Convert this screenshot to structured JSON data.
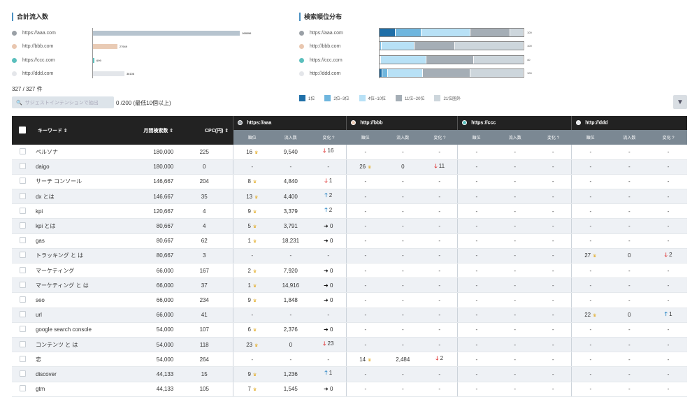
{
  "left_chart": {
    "title": "合計流入数",
    "sites": [
      {
        "label": "https://aaa.com",
        "value": "168596",
        "color": "#9aa0a6",
        "bar_fraction": 1.0,
        "bar_color": "#b7c4cf"
      },
      {
        "label": "http://bbb.com",
        "value": "27949",
        "color": "#e9c7b0",
        "bar_fraction": 0.166,
        "bar_color": "#e9cbb5"
      },
      {
        "label": "https://ccc.com",
        "value": "699",
        "color": "#5bbfbd",
        "bar_fraction": 0.004,
        "bar_color": "#5bbfbd"
      },
      {
        "label": "http://ddd.com",
        "value": "36106",
        "color": "#e4e6ea",
        "bar_fraction": 0.214,
        "bar_color": "#e3e6ea"
      }
    ]
  },
  "right_chart": {
    "title": "検索順位分布",
    "sites": [
      {
        "label": "https://aaa.com",
        "value": "100",
        "color": "#9aa0a6",
        "segments": [
          0.11,
          0.18,
          0.34,
          0.28,
          0.09
        ]
      },
      {
        "label": "http://bbb.com",
        "value": "100",
        "color": "#e9c7b0",
        "segments": [
          0.0,
          0.01,
          0.23,
          0.28,
          0.48
        ]
      },
      {
        "label": "https://ccc.com",
        "value": "40",
        "color": "#5bbfbd",
        "segments": [
          0.0,
          0.0,
          0.32,
          0.33,
          0.35
        ]
      },
      {
        "label": "http://ddd.com",
        "value": "100",
        "color": "#e4e6ea",
        "segments": [
          0.02,
          0.04,
          0.24,
          0.33,
          0.37
        ]
      }
    ],
    "legend": [
      {
        "label": "1位",
        "color": "#1f6fa8"
      },
      {
        "label": "2位~3位",
        "color": "#6fb6de"
      },
      {
        "label": "4位~10位",
        "color": "#b8e1f6"
      },
      {
        "label": "11位~20位",
        "color": "#a5aeb6"
      },
      {
        "label": "21位圏外",
        "color": "#cdd6dc"
      }
    ]
  },
  "count_text": "327 / 327 件",
  "search": {
    "placeholder": "サジェストインテンションで抽出",
    "count": "0 /200 (最低10個以上)"
  },
  "table": {
    "headers": {
      "keyword": "キーワード",
      "volume": "月間検索数",
      "cpc": "CPC(円)"
    },
    "sites": [
      "https://aaa",
      "http://bbb",
      "https://ccc",
      "http://ddd"
    ],
    "site_colors": [
      "#9aa0a6",
      "#e9c7b0",
      "#5bbfbd",
      "#e4e6ea"
    ],
    "sub_headers": [
      "順位",
      "流入数",
      "変化"
    ],
    "rows": [
      {
        "kw": "ペルソナ",
        "vol": "180,000",
        "cpc": "225",
        "s": [
          [
            "16",
            "9,540",
            "d",
            "16"
          ],
          null,
          null,
          null
        ]
      },
      {
        "kw": "daigo",
        "vol": "180,000",
        "cpc": "0",
        "s": [
          [
            "-",
            "-",
            "",
            ""
          ],
          [
            "26",
            "0",
            "d",
            "11"
          ],
          null,
          null
        ]
      },
      {
        "kw": "サーチ コンソール",
        "vol": "146,667",
        "cpc": "204",
        "s": [
          [
            "8",
            "4,840",
            "d",
            "1"
          ],
          null,
          null,
          null
        ]
      },
      {
        "kw": "dx とは",
        "vol": "146,667",
        "cpc": "35",
        "s": [
          [
            "13",
            "4,400",
            "u",
            "2"
          ],
          null,
          null,
          null
        ]
      },
      {
        "kw": "kpi",
        "vol": "120,667",
        "cpc": "4",
        "s": [
          [
            "9",
            "3,379",
            "u",
            "2"
          ],
          null,
          null,
          null
        ]
      },
      {
        "kw": "kpi とは",
        "vol": "80,667",
        "cpc": "4",
        "s": [
          [
            "5",
            "3,791",
            "f",
            "0"
          ],
          null,
          null,
          null
        ]
      },
      {
        "kw": "gas",
        "vol": "80,667",
        "cpc": "62",
        "s": [
          [
            "1",
            "18,231",
            "f",
            "0"
          ],
          null,
          null,
          null
        ]
      },
      {
        "kw": "トラッキング と は",
        "vol": "80,667",
        "cpc": "3",
        "s": [
          null,
          null,
          null,
          [
            "27",
            "0",
            "d",
            "2"
          ]
        ]
      },
      {
        "kw": "マーケティング",
        "vol": "66,000",
        "cpc": "167",
        "s": [
          [
            "2",
            "7,920",
            "f",
            "0"
          ],
          null,
          null,
          null
        ]
      },
      {
        "kw": "マーケティング と は",
        "vol": "66,000",
        "cpc": "37",
        "s": [
          [
            "1",
            "14,916",
            "f",
            "0"
          ],
          null,
          null,
          null
        ]
      },
      {
        "kw": "seo",
        "vol": "66,000",
        "cpc": "234",
        "s": [
          [
            "9",
            "1,848",
            "f",
            "0"
          ],
          null,
          null,
          null
        ]
      },
      {
        "kw": "url",
        "vol": "66,000",
        "cpc": "41",
        "s": [
          null,
          null,
          null,
          [
            "22",
            "0",
            "u",
            "1"
          ]
        ]
      },
      {
        "kw": "google search console",
        "vol": "54,000",
        "cpc": "107",
        "s": [
          [
            "6",
            "2,376",
            "f",
            "0"
          ],
          null,
          null,
          null
        ]
      },
      {
        "kw": "コンテンツ と は",
        "vol": "54,000",
        "cpc": "118",
        "s": [
          [
            "23",
            "0",
            "d",
            "23"
          ],
          null,
          null,
          null
        ]
      },
      {
        "kw": "恋",
        "vol": "54,000",
        "cpc": "264",
        "s": [
          null,
          [
            "14",
            "2,484",
            "d",
            "2"
          ],
          null,
          null
        ]
      },
      {
        "kw": "discover",
        "vol": "44,133",
        "cpc": "15",
        "s": [
          [
            "9",
            "1,236",
            "u",
            "1"
          ],
          null,
          null,
          null
        ]
      },
      {
        "kw": "gtm",
        "vol": "44,133",
        "cpc": "105",
        "s": [
          [
            "7",
            "1,545",
            "f",
            "0"
          ],
          null,
          null,
          null
        ]
      }
    ]
  }
}
